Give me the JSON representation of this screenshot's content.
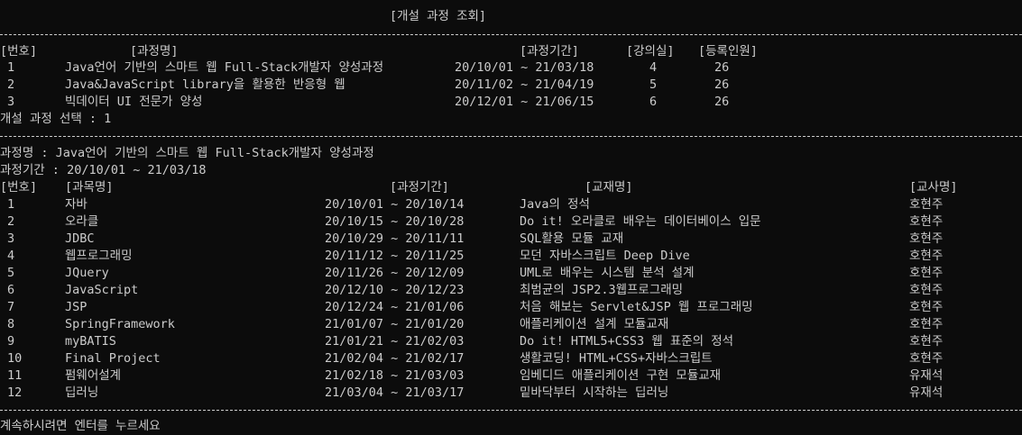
{
  "title": "[개설 과정 조회]",
  "course_table": {
    "headers": {
      "num": "[번호]",
      "name": "[과정명]",
      "period": "[과정기간]",
      "room": "[강의실]",
      "count": "[등록인원]"
    },
    "rows": [
      {
        "num": "1",
        "name": "Java언어 기반의 스마트 웹 Full-Stack개발자 양성과정",
        "period": "20/10/01 ~ 21/03/18",
        "room": "4",
        "count": "26"
      },
      {
        "num": "2",
        "name": "Java&JavaScript library을 활용한 반응형 웹",
        "period": "20/11/02 ~ 21/04/19",
        "room": "5",
        "count": "26"
      },
      {
        "num": "3",
        "name": "빅데이터 UI 전문가 양성",
        "period": "20/12/01 ~ 21/06/15",
        "room": "6",
        "count": "26"
      }
    ]
  },
  "select_prompt": "개설 과정 선택 : 1",
  "detail": {
    "course_line": "과정명 : Java언어 기반의 스마트 웹 Full-Stack개발자 양성과정",
    "period_line": "과정기간 : 20/10/01 ~ 21/03/18",
    "headers": {
      "num": "[번호]",
      "subject": "[과목명]",
      "period": "[과정기간]",
      "book": "[교재명]",
      "teacher": "[교사명]"
    },
    "rows": [
      {
        "num": "1",
        "subject": "자바",
        "period": "20/10/01 ~ 20/10/14",
        "book": "Java의 정석",
        "teacher": "호현주"
      },
      {
        "num": "2",
        "subject": "오라클",
        "period": "20/10/15 ~ 20/10/28",
        "book": "Do it! 오라클로 배우는 데이터베이스 입문",
        "teacher": "호현주"
      },
      {
        "num": "3",
        "subject": "JDBC",
        "period": "20/10/29 ~ 20/11/11",
        "book": "SQL활용 모듈 교재",
        "teacher": "호현주"
      },
      {
        "num": "4",
        "subject": "웹프로그래밍",
        "period": "20/11/12 ~ 20/11/25",
        "book": "모던 자바스크립트 Deep Dive",
        "teacher": "호현주"
      },
      {
        "num": "5",
        "subject": "JQuery",
        "period": "20/11/26 ~ 20/12/09",
        "book": "UML로 배우는 시스템 분석 설계",
        "teacher": "호현주"
      },
      {
        "num": "6",
        "subject": "JavaScript",
        "period": "20/12/10 ~ 20/12/23",
        "book": "최범균의 JSP2.3웹프로그래밍",
        "teacher": "호현주"
      },
      {
        "num": "7",
        "subject": "JSP",
        "period": "20/12/24 ~ 21/01/06",
        "book": "처음 해보는 Servlet&JSP 웹 프로그래밍",
        "teacher": "호현주"
      },
      {
        "num": "8",
        "subject": "SpringFramework",
        "period": "21/01/07 ~ 21/01/20",
        "book": "애플리케이션 설계 모듈교재",
        "teacher": "호현주"
      },
      {
        "num": "9",
        "subject": "myBATIS",
        "period": "21/01/21 ~ 21/02/03",
        "book": "Do it! HTML5+CSS3 웹 표준의 정석",
        "teacher": "호현주"
      },
      {
        "num": "10",
        "subject": "Final Project",
        "period": "21/02/04 ~ 21/02/17",
        "book": "생활코딩! HTML+CSS+자바스크립트",
        "teacher": "호현주"
      },
      {
        "num": "11",
        "subject": "펌웨어설계",
        "period": "21/02/18 ~ 21/03/03",
        "book": "임베디드 애플리케이션 구현 모듈교재",
        "teacher": "유재석"
      },
      {
        "num": "12",
        "subject": "딥러닝",
        "period": "21/03/04 ~ 21/03/17",
        "book": "밑바닥부터 시작하는 딥러닝",
        "teacher": "유재석"
      }
    ]
  },
  "continue_prompt": "계속하시려면 엔터를 누르세요"
}
